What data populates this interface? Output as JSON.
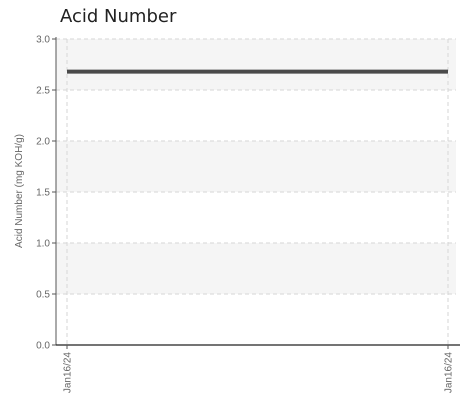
{
  "chart_data": {
    "type": "line",
    "title": "Acid Number",
    "ylabel": "Acid Number (mg KOH/g)",
    "xlabel": "",
    "x": [
      "Jan16/24",
      "Jan16/24"
    ],
    "series": [
      {
        "values": [
          2.68,
          2.68
        ],
        "color": "#4a4a4a"
      }
    ],
    "ylim": [
      0.0,
      3.0
    ],
    "yticks": [
      "0.0",
      "0.5",
      "1.0",
      "1.5",
      "2.0",
      "2.5",
      "3.0"
    ],
    "grid": true,
    "banded_background": true,
    "band_color": "#f5f5f5"
  }
}
